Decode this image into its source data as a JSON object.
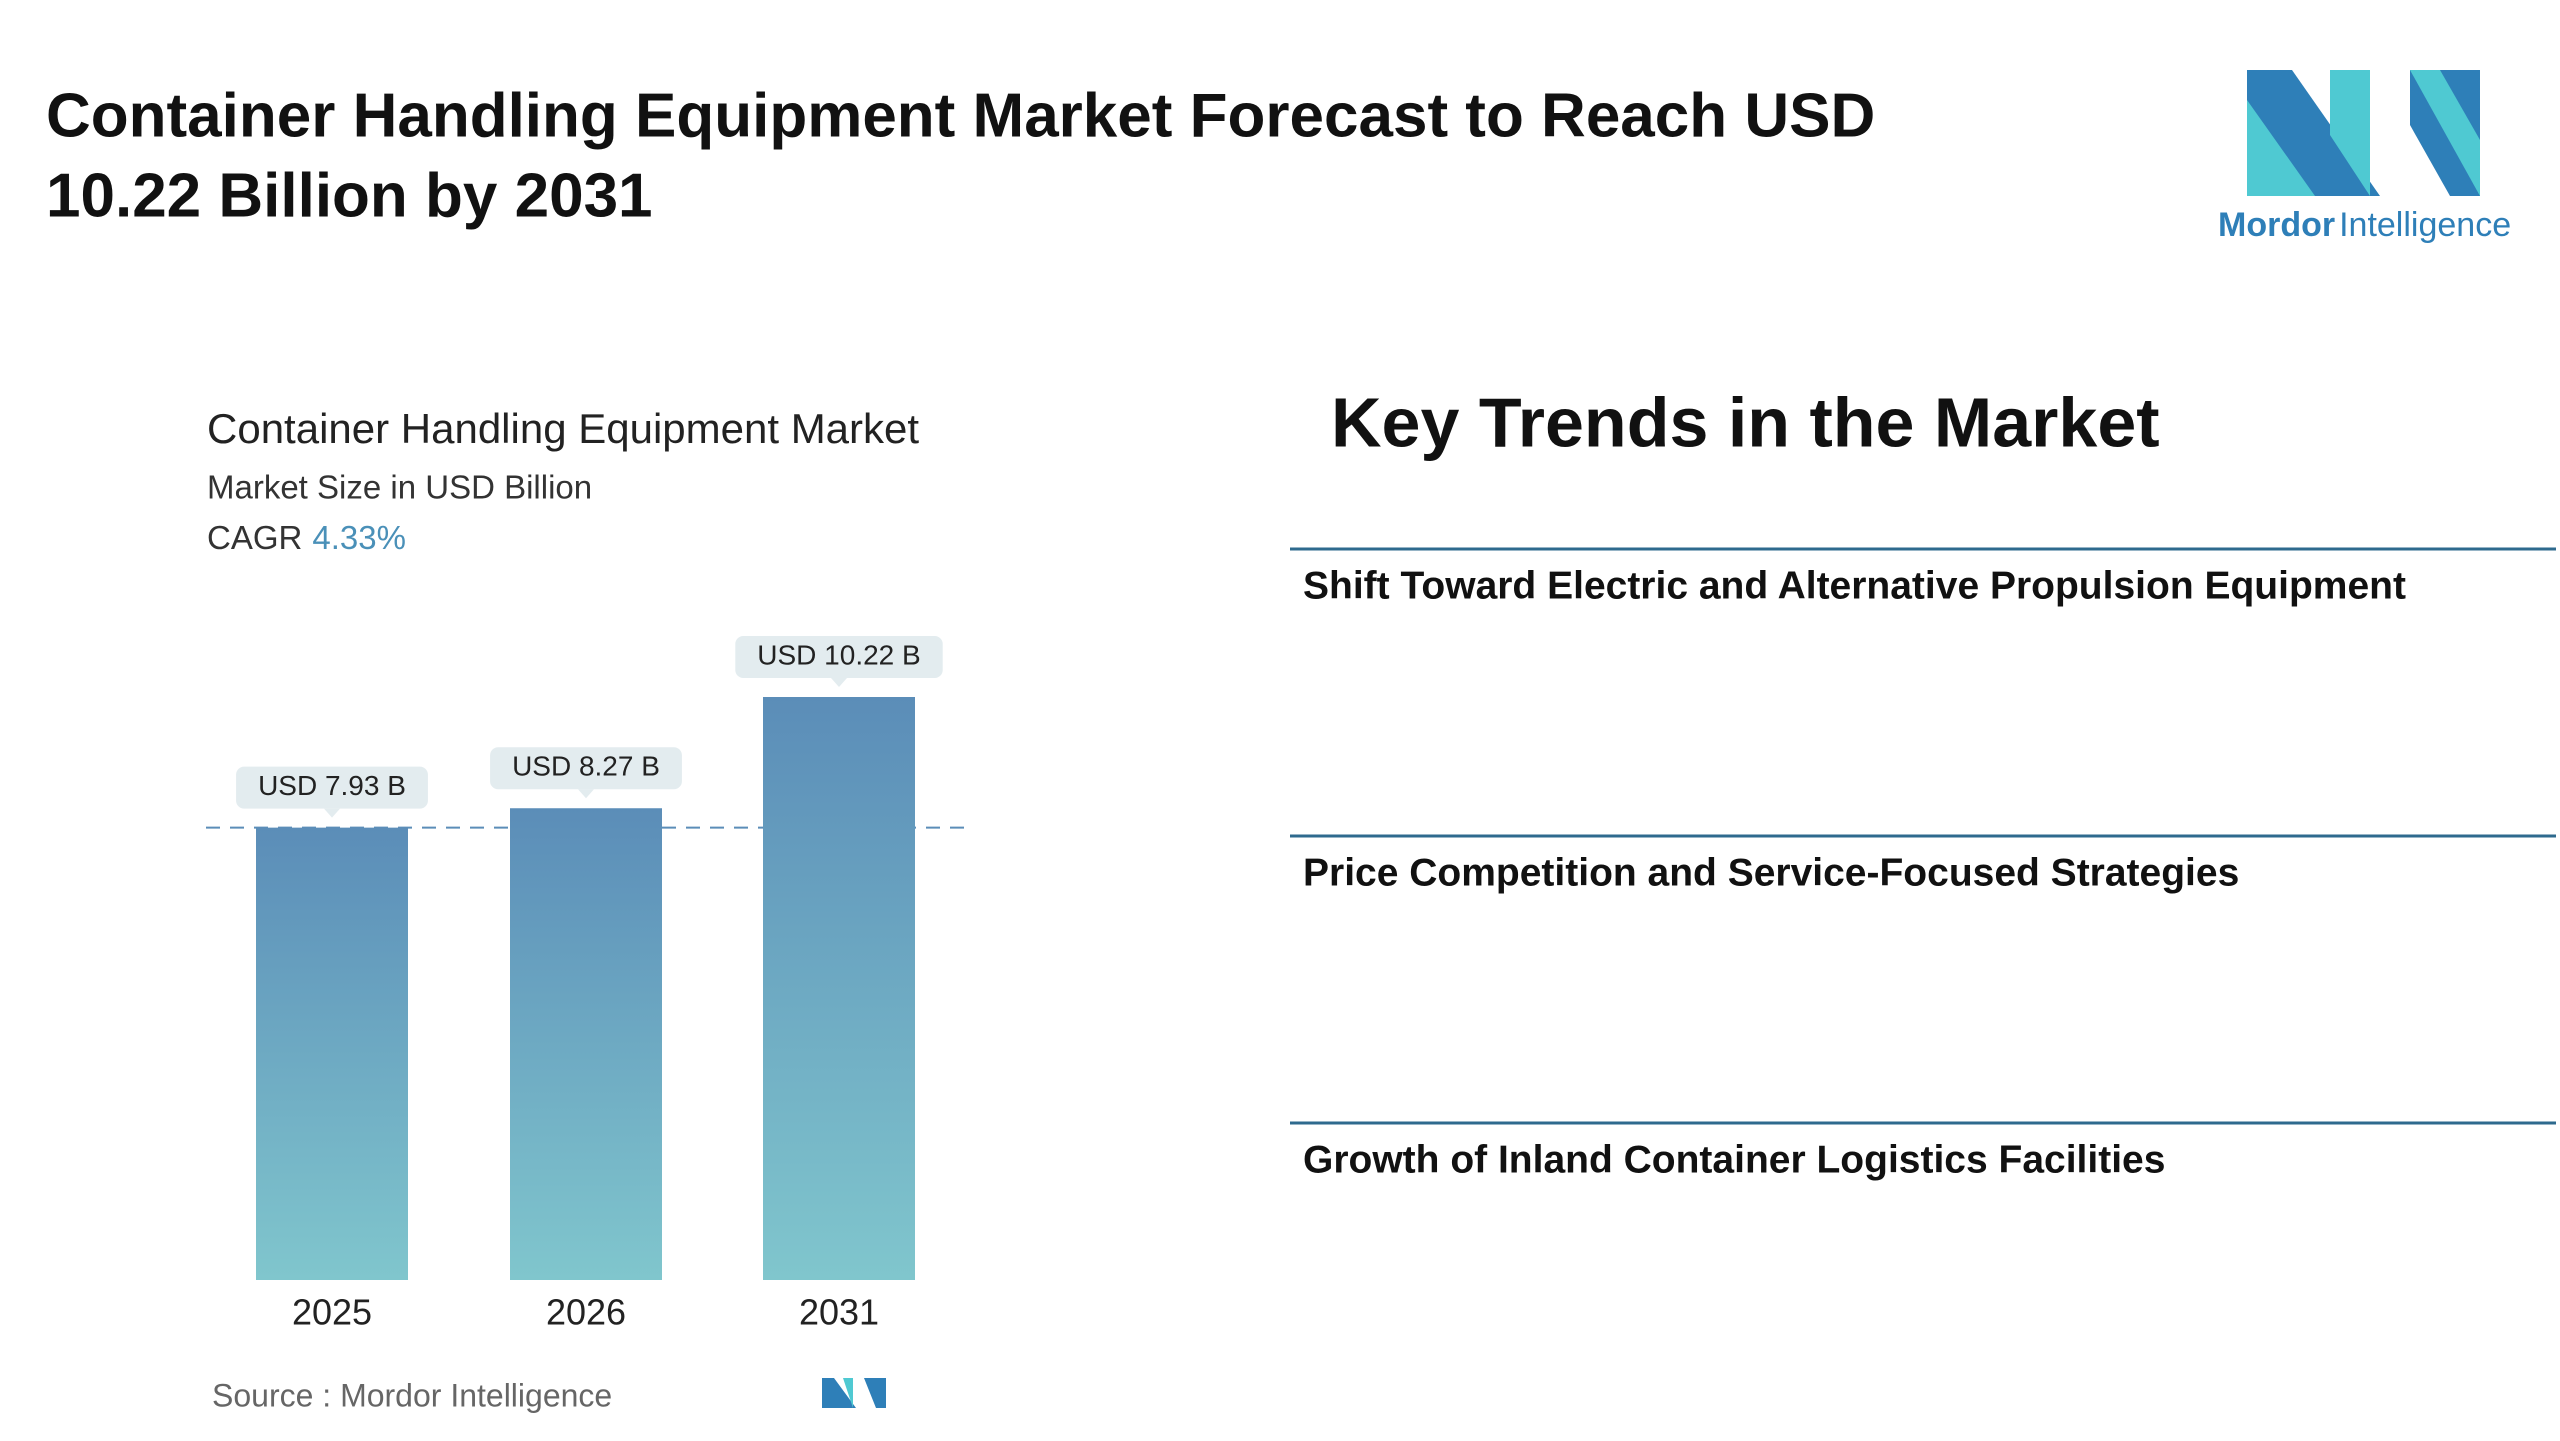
{
  "header": {
    "title_line1": "Container Handling Equipment Market Forecast to Reach USD",
    "title_line2": "10.22 Billion by 2031",
    "logo_text_bold": "Mordor",
    "logo_text": "Intelligence"
  },
  "chart_data": {
    "type": "bar",
    "title": "Container Handling Equipment Market",
    "subtitle": "Market Size in USD Billion",
    "cagr_label": "CAGR",
    "cagr_value": "4.33%",
    "categories": [
      "2025",
      "2026",
      "2031"
    ],
    "values": [
      7.93,
      8.27,
      10.22
    ],
    "value_labels": [
      "USD 7.93 B",
      "USD 8.27 B",
      "USD 10.22 B"
    ],
    "color": [
      "#5b8db8",
      "#80c6cd"
    ],
    "source": "Source :  Mordor Intelligence"
  },
  "trends": {
    "title": "Key Trends in the Market",
    "items": [
      "Shift Toward Electric and Alternative Propulsion Equipment",
      "Price Competition and Service-Focused Strategies",
      "Growth of Inland Container Logistics Facilities"
    ]
  }
}
